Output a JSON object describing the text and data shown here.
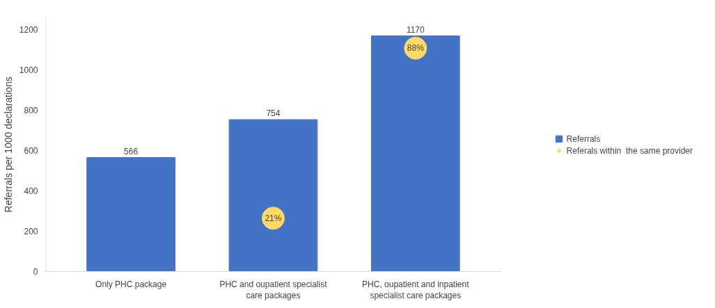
{
  "chart_data": {
    "type": "bar",
    "ylabel": "Referrals per 1000 declarations",
    "categories": [
      "Only PHC package",
      "PHC and oupatient specialist care packages",
      "PHC, oupatient and inpatient specialist care packages"
    ],
    "series": [
      {
        "name": "Referrals",
        "color": "#4472c4",
        "values": [
          566,
          754,
          1170
        ],
        "value_labels": [
          "566",
          "754",
          "1170"
        ]
      },
      {
        "name": "Referals within  the same provider",
        "type": "scatter",
        "color": "#ffd966",
        "axis": "y2",
        "values": [
          null,
          21,
          88
        ],
        "value_labels": [
          null,
          "21%",
          "88%"
        ]
      }
    ],
    "y2lim": [
      0,
      100
    ],
    "ylim": [
      0,
      1260
    ],
    "yticks": [
      0,
      200,
      400,
      600,
      800,
      1000,
      1200
    ],
    "grid": false,
    "legend": "right",
    "marker": "circle"
  }
}
